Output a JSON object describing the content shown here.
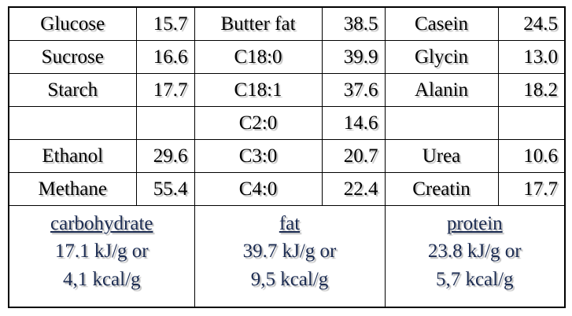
{
  "table": {
    "rows": [
      [
        "Glucose",
        "15.7",
        "Butter fat",
        "38.5",
        "Casein",
        "24.5"
      ],
      [
        "Sucrose",
        "16.6",
        "C18:0",
        "39.9",
        "Glycin",
        "13.0"
      ],
      [
        "Starch",
        "17.7",
        "C18:1",
        "37.6",
        "Alanin",
        "18.2"
      ],
      [
        null,
        null,
        "C2:0",
        "14.6",
        null,
        null
      ],
      [
        "Ethanol",
        "29.6",
        "C3:0",
        "20.7",
        "Urea",
        "10.6"
      ],
      [
        "Methane",
        "55.4",
        "C4:0",
        "22.4",
        "Creatin",
        "17.7"
      ]
    ],
    "summary": [
      {
        "heading": "carbohydrate",
        "lines": [
          "17.1 kJ/g or",
          "4,1 kcal/g"
        ]
      },
      {
        "heading": "fat",
        "lines": [
          "39.7 kJ/g or",
          "9,5 kcal/g"
        ]
      },
      {
        "heading": "protein",
        "lines": [
          "23.8 kJ/g or",
          "5,7 kcal/g"
        ]
      }
    ]
  }
}
